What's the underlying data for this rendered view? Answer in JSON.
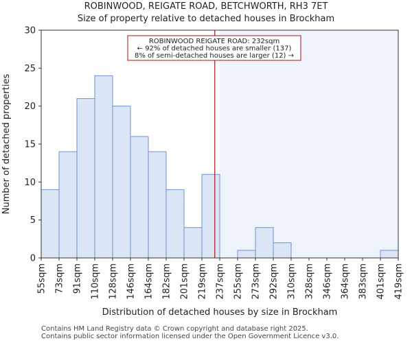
{
  "chart_data": {
    "type": "bar",
    "title": [
      "ROBINWOOD, REIGATE ROAD, BETCHWORTH, RH3 7ET",
      "Size of property relative to detached houses in Brockham"
    ],
    "xlabel": "Distribution of detached houses by size in Brockham",
    "ylabel": "Number of detached properties",
    "bin_edges": [
      55,
      73,
      91,
      110,
      128,
      146,
      164,
      182,
      201,
      219,
      237,
      255,
      273,
      292,
      310,
      328,
      346,
      364,
      383,
      401,
      419
    ],
    "tick_labels": [
      "55sqm",
      "73sqm",
      "91sqm",
      "110sqm",
      "128sqm",
      "146sqm",
      "164sqm",
      "182sqm",
      "201sqm",
      "219sqm",
      "237sqm",
      "255sqm",
      "273sqm",
      "292sqm",
      "310sqm",
      "328sqm",
      "346sqm",
      "364sqm",
      "383sqm",
      "401sqm",
      "419sqm"
    ],
    "values": [
      9,
      14,
      21,
      24,
      20,
      16,
      14,
      9,
      4,
      11,
      0,
      1,
      4,
      2,
      0,
      0,
      0,
      0,
      0,
      1
    ],
    "ylim": [
      0,
      30
    ],
    "yticks": [
      0,
      5,
      10,
      15,
      20,
      25,
      30
    ],
    "property_size": 232,
    "annotation": [
      "ROBINWOOD REIGATE ROAD: 232sqm",
      "← 92% of detached houses are smaller (137)",
      "8% of semi-detached houses are larger (12) →"
    ],
    "colors": {
      "bar_fill": "#dae5f5",
      "bar_edge": "#6f93c9",
      "marker": "#aa1111",
      "right_shade": "#eef2fb"
    }
  },
  "footer": {
    "line1": "Contains HM Land Registry data © Crown copyright and database right 2025.",
    "line2": "Contains public sector information licensed under the Open Government Licence v3.0."
  }
}
